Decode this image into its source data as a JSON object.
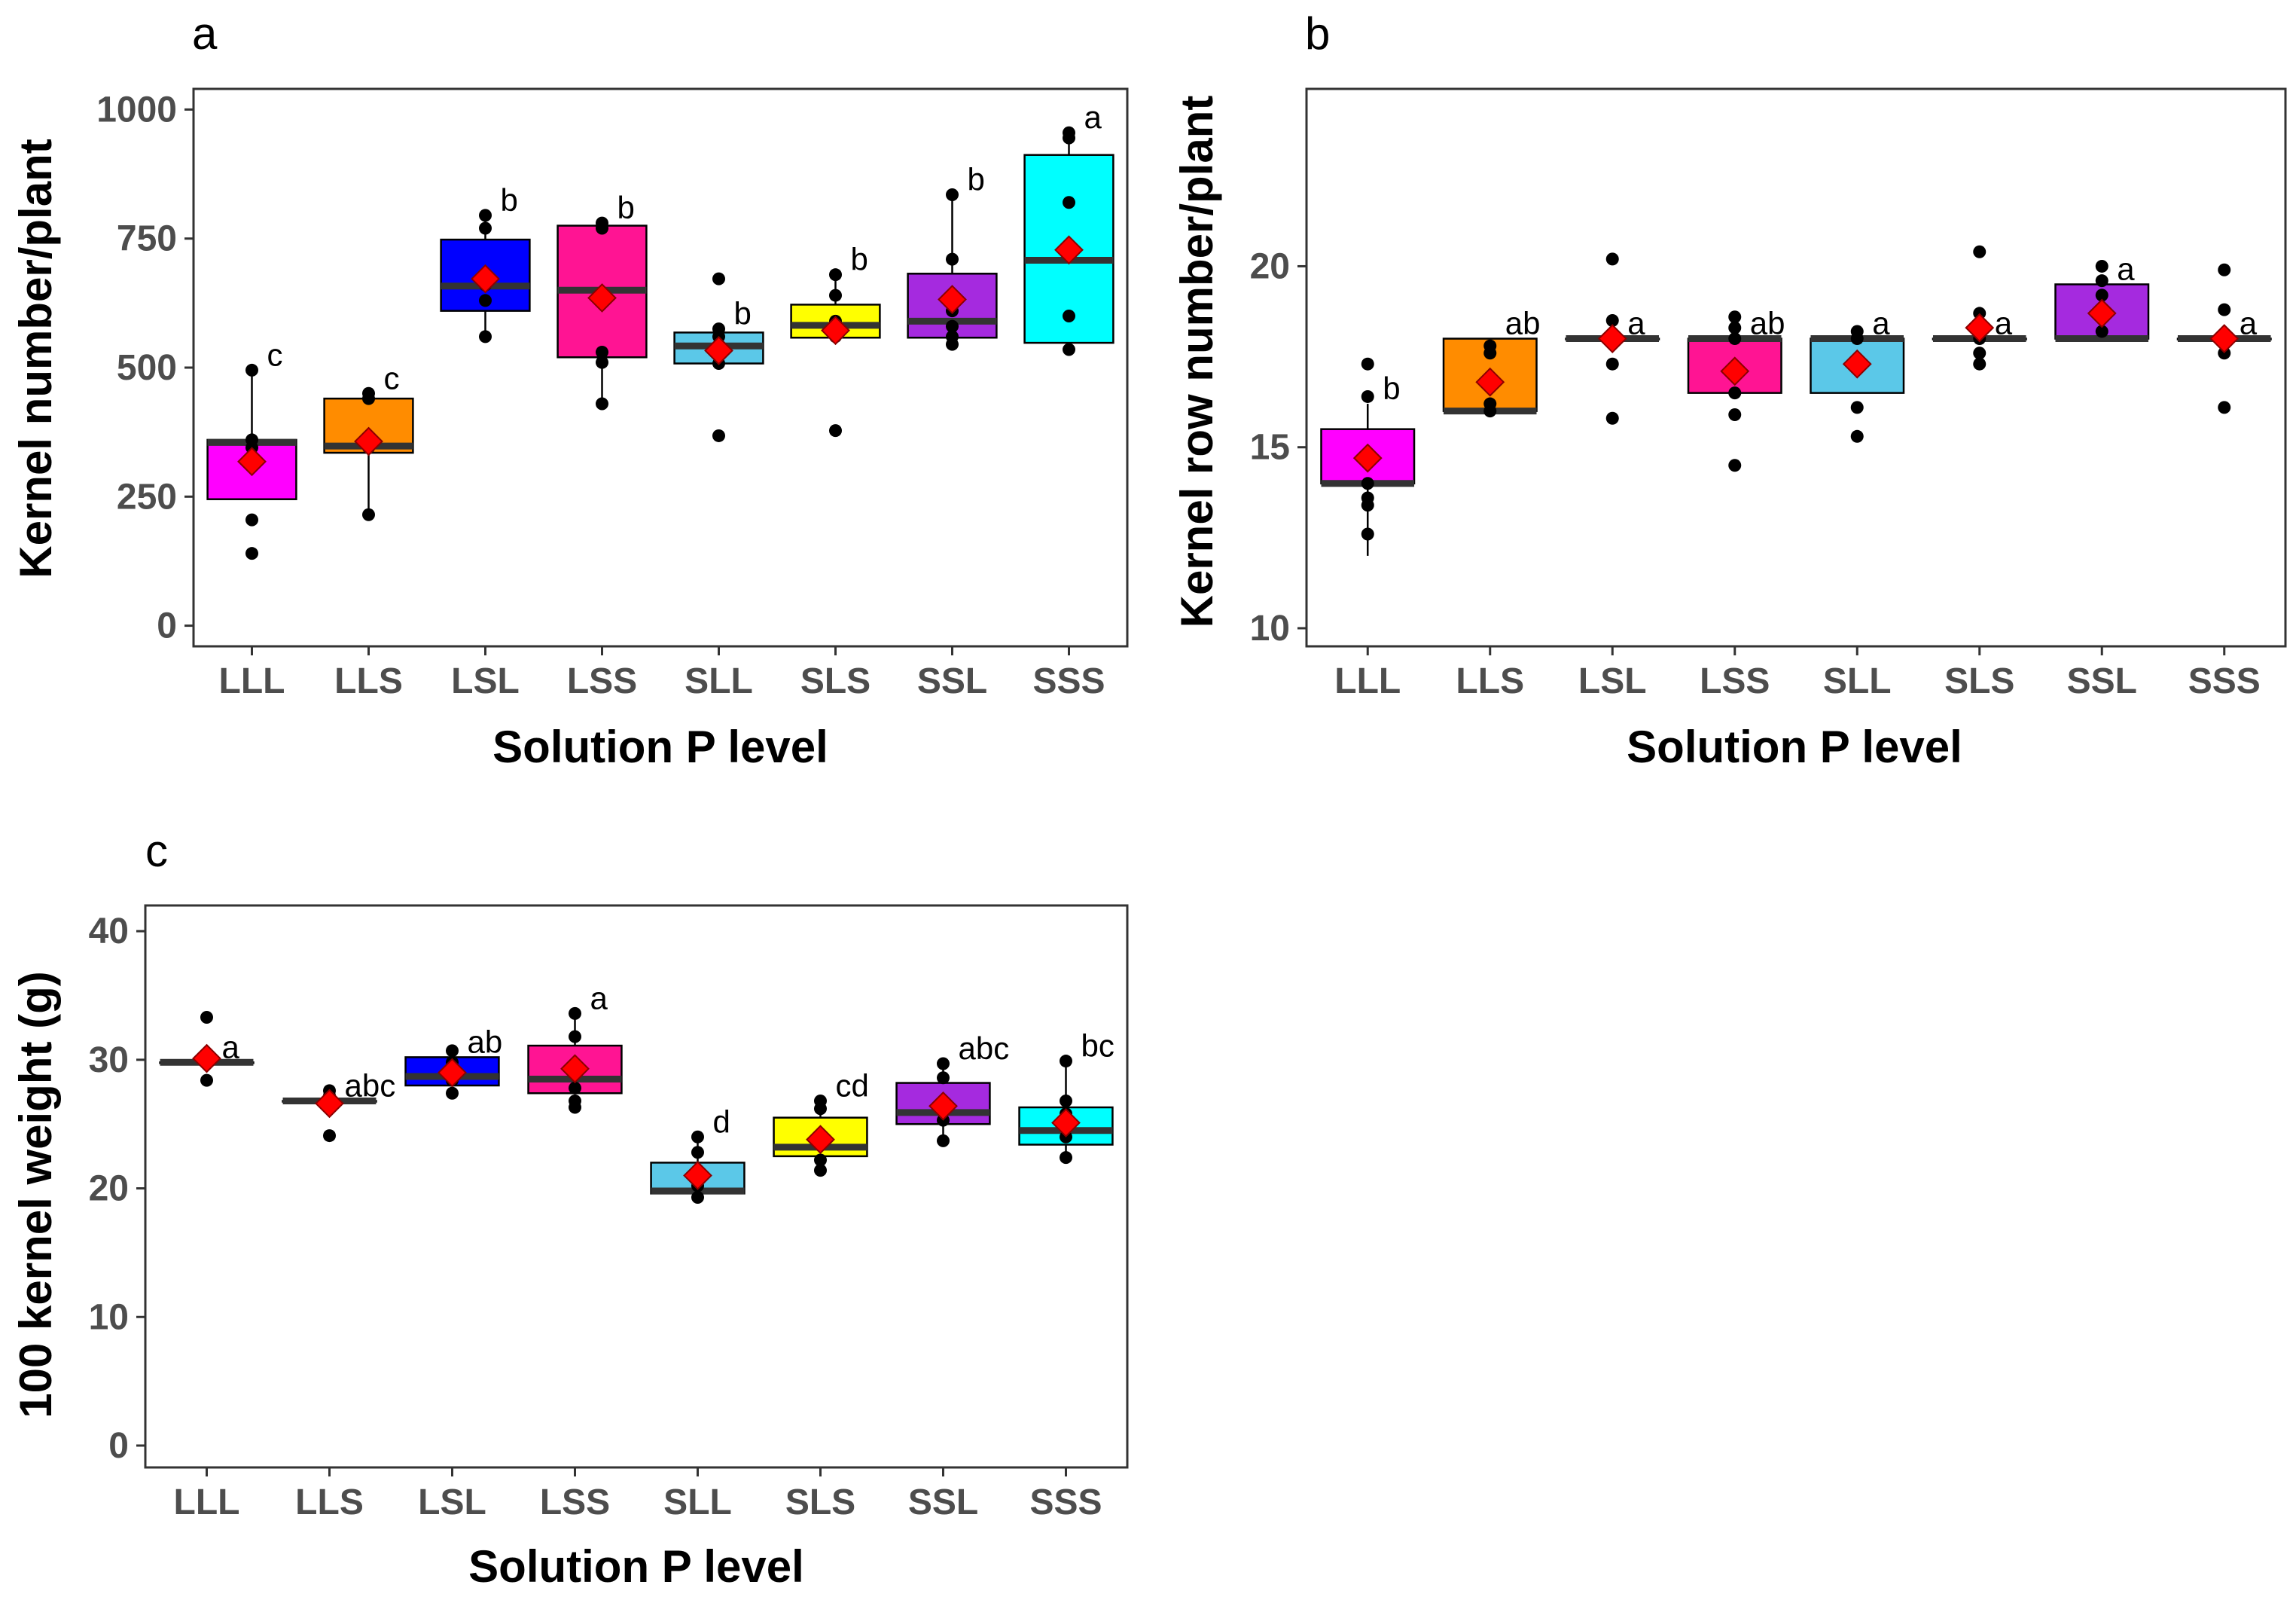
{
  "chart_data": [
    {
      "panel": "a",
      "type": "box",
      "title": "",
      "xlabel": "Solution P level",
      "ylabel": "Kernel number/plant",
      "ylim": [
        -40,
        1040
      ],
      "yticks": [
        0,
        250,
        500,
        750,
        1000
      ],
      "categories": [
        "LLL",
        "LLS",
        "LSL",
        "LSS",
        "SLL",
        "SLS",
        "SSL",
        "SSS"
      ],
      "fills": [
        "#ff00ff",
        "#ff8c00",
        "#0000ff",
        "#ff1493",
        "#5bc8e8",
        "#ffff00",
        "#a52adf",
        "#00ffff"
      ],
      "boxes": [
        {
          "q1": 245,
          "median": 355,
          "q3": 360,
          "whisker_low": 245,
          "whisker_high": 495,
          "mean": 318,
          "points": [
            140,
            205,
            345,
            360,
            495
          ],
          "letter": "c"
        },
        {
          "q1": 335,
          "median": 348,
          "q3": 440,
          "whisker_low": 215,
          "whisker_high": 450,
          "mean": 357,
          "points": [
            215,
            345,
            350,
            440,
            450
          ],
          "letter": "c"
        },
        {
          "q1": 610,
          "median": 658,
          "q3": 748,
          "whisker_low": 560,
          "whisker_high": 795,
          "mean": 672,
          "points": [
            560,
            630,
            660,
            770,
            795
          ],
          "letter": "b"
        },
        {
          "q1": 520,
          "median": 650,
          "q3": 775,
          "whisker_low": 430,
          "whisker_high": 780,
          "mean": 635,
          "points": [
            430,
            510,
            530,
            770,
            780
          ],
          "letter": "b"
        },
        {
          "q1": 508,
          "median": 542,
          "q3": 568,
          "whisker_low": 508,
          "whisker_high": 575,
          "mean": 533,
          "points": [
            368,
            508,
            540,
            560,
            575,
            672
          ],
          "letter": "b"
        },
        {
          "q1": 558,
          "median": 582,
          "q3": 622,
          "whisker_low": 558,
          "whisker_high": 680,
          "mean": 572,
          "points": [
            378,
            560,
            590,
            640,
            680
          ],
          "letter": "b"
        },
        {
          "q1": 558,
          "median": 590,
          "q3": 682,
          "whisker_low": 545,
          "whisker_high": 835,
          "mean": 632,
          "points": [
            545,
            560,
            580,
            610,
            710,
            835
          ],
          "letter": "b"
        },
        {
          "q1": 548,
          "median": 708,
          "q3": 912,
          "whisker_low": 535,
          "whisker_high": 955,
          "mean": 728,
          "points": [
            535,
            600,
            820,
            945,
            955
          ],
          "letter": "a"
        }
      ]
    },
    {
      "panel": "b",
      "type": "box",
      "title": "",
      "xlabel": "Solution P level",
      "ylabel": "Kernel row number/plant",
      "ylim": [
        9.5,
        24.9
      ],
      "yticks": [
        10,
        15,
        20
      ],
      "categories": [
        "LLL",
        "LLS",
        "LSL",
        "LSS",
        "SLL",
        "SLS",
        "SSL",
        "SSS"
      ],
      "fills": [
        "#ff00ff",
        "#ff8c00",
        "#0000ff",
        "#ff1493",
        "#5bc8e8",
        "#ffff00",
        "#a52adf",
        "#00ffff"
      ],
      "boxes": [
        {
          "q1": 14.0,
          "median": 14.0,
          "q3": 15.5,
          "whisker_low": 12.0,
          "whisker_high": 16.2,
          "mean": 14.7,
          "points": [
            12.6,
            13.4,
            13.6,
            14.0,
            16.4,
            17.3
          ],
          "letter": "b"
        },
        {
          "q1": 16.0,
          "median": 16.0,
          "q3": 18.0,
          "whisker_low": 16.0,
          "whisker_high": 18.0,
          "mean": 16.8,
          "points": [
            16.0,
            16.2,
            17.6,
            17.8
          ],
          "letter": "ab"
        },
        {
          "q1": 18.0,
          "median": 18.0,
          "q3": 18.0,
          "whisker_low": 18.0,
          "whisker_high": 18.0,
          "mean": 18.0,
          "points": [
            15.8,
            17.3,
            18.0,
            18.5,
            20.2
          ],
          "letter": "a"
        },
        {
          "q1": 16.5,
          "median": 18.0,
          "q3": 18.0,
          "whisker_low": 16.5,
          "whisker_high": 18.0,
          "mean": 17.1,
          "points": [
            14.5,
            15.9,
            16.5,
            18.0,
            18.3,
            18.6
          ],
          "letter": "ab"
        },
        {
          "q1": 16.5,
          "median": 18.0,
          "q3": 18.0,
          "whisker_low": 16.5,
          "whisker_high": 18.0,
          "mean": 17.3,
          "points": [
            15.3,
            16.1,
            17.4,
            18.0,
            18.2
          ],
          "letter": "a"
        },
        {
          "q1": 18.0,
          "median": 18.0,
          "q3": 18.0,
          "whisker_low": 18.0,
          "whisker_high": 18.0,
          "mean": 18.3,
          "points": [
            17.3,
            17.6,
            18.0,
            18.7,
            20.4
          ],
          "letter": "a"
        },
        {
          "q1": 18.0,
          "median": 18.0,
          "q3": 19.5,
          "whisker_low": 18.0,
          "whisker_high": 19.5,
          "mean": 18.7,
          "points": [
            18.2,
            19.2,
            19.6,
            20.0
          ],
          "letter": "a"
        },
        {
          "q1": 18.0,
          "median": 18.0,
          "q3": 18.0,
          "whisker_low": 18.0,
          "whisker_high": 18.0,
          "mean": 18.0,
          "points": [
            16.1,
            17.6,
            18.0,
            18.8,
            19.9
          ],
          "letter": "a"
        }
      ]
    },
    {
      "panel": "c",
      "type": "box",
      "title": "",
      "xlabel": "Solution P level",
      "ylabel": "100 kernel weight (g)",
      "ylim": [
        -1.7,
        42
      ],
      "yticks": [
        0,
        10,
        20,
        30,
        40
      ],
      "categories": [
        "LLL",
        "LLS",
        "LSL",
        "LSS",
        "SLL",
        "SLS",
        "SSL",
        "SSS"
      ],
      "fills": [
        "#ff00ff",
        "#ff8c00",
        "#0000ff",
        "#ff1493",
        "#5bc8e8",
        "#ffff00",
        "#a52adf",
        "#00ffff"
      ],
      "boxes": [
        {
          "q1": 29.8,
          "median": 29.8,
          "q3": 29.8,
          "whisker_low": 29.8,
          "whisker_high": 29.8,
          "mean": 30.1,
          "points": [
            28.4,
            29.7,
            30.3,
            33.3
          ],
          "letter": "a"
        },
        {
          "q1": 26.8,
          "median": 26.8,
          "q3": 26.8,
          "whisker_low": 26.8,
          "whisker_high": 26.8,
          "mean": 26.6,
          "points": [
            24.1,
            26.3,
            27.2,
            27.6
          ],
          "letter": "abc"
        },
        {
          "q1": 28.0,
          "median": 28.7,
          "q3": 30.2,
          "whisker_low": 28.0,
          "whisker_high": 30.2,
          "mean": 29.0,
          "points": [
            27.4,
            28.4,
            29.8,
            30.7
          ],
          "letter": "ab"
        },
        {
          "q1": 27.4,
          "median": 28.5,
          "q3": 31.1,
          "whisker_low": 27.4,
          "whisker_high": 33.6,
          "mean": 29.3,
          "points": [
            26.3,
            26.8,
            27.8,
            31.8,
            33.6
          ],
          "letter": "a"
        },
        {
          "q1": 19.6,
          "median": 19.8,
          "q3": 22.0,
          "whisker_low": 19.3,
          "whisker_high": 24.0,
          "mean": 21.0,
          "points": [
            19.3,
            20.2,
            21.4,
            22.8,
            24.0
          ],
          "letter": "d"
        },
        {
          "q1": 22.5,
          "median": 23.2,
          "q3": 25.5,
          "whisker_low": 21.4,
          "whisker_high": 26.8,
          "mean": 23.8,
          "points": [
            21.4,
            22.2,
            24.0,
            26.2,
            26.8
          ],
          "letter": "cd"
        },
        {
          "q1": 25.0,
          "median": 25.9,
          "q3": 28.2,
          "whisker_low": 23.7,
          "whisker_high": 29.7,
          "mean": 26.4,
          "points": [
            23.7,
            25.3,
            26.8,
            28.6,
            29.7
          ],
          "letter": "abc"
        },
        {
          "q1": 23.4,
          "median": 24.5,
          "q3": 26.3,
          "whisker_low": 22.4,
          "whisker_high": 29.9,
          "mean": 25.1,
          "points": [
            22.4,
            24.0,
            25.8,
            26.8,
            29.9
          ],
          "letter": "bc"
        }
      ]
    }
  ]
}
